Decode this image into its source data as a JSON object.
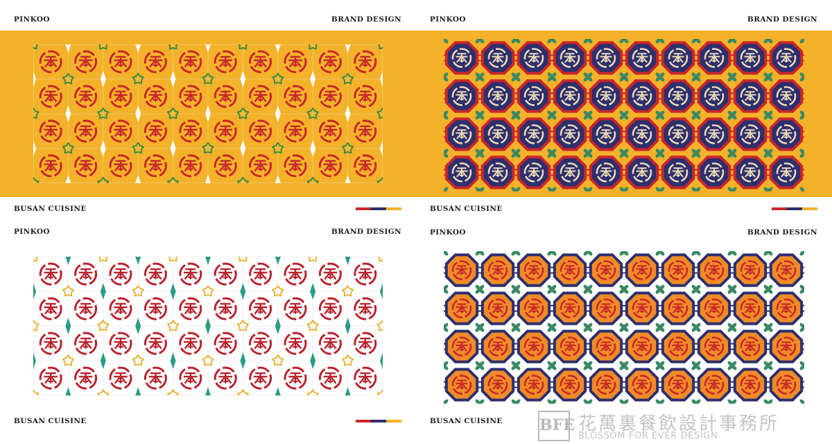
{
  "panels": [
    {
      "id": "top-left",
      "brand": "PINKOO",
      "tagline": "BRAND DESIGN",
      "footer": "BUSAN  CUISINE",
      "pattern_style": "roundel",
      "colors": {
        "background": "#f4b22a",
        "pattern_bg": "#f4b22a",
        "emblem": "#c8262b",
        "flower": "#3e8b3a",
        "diamond": "#ffffff",
        "grid": "#e7d4a0"
      }
    },
    {
      "id": "top-right",
      "brand": "PINKOO",
      "tagline": "BRAND DESIGN",
      "footer": "BUSAN  CUISINE",
      "pattern_style": "octagon",
      "colors": {
        "background": "#f4b22a",
        "pattern_bg": "#f4b22a",
        "octagon_outer": "#c8262b",
        "octagon_fill": "#2d2f6e",
        "emblem": "#ead9b5",
        "connector": "#c8262b",
        "clover": "#3b8a63"
      }
    },
    {
      "id": "bottom-left",
      "brand": "PINKOO",
      "tagline": "BRAND DESIGN",
      "footer": "BUSAN  CUISINE",
      "pattern_style": "roundel",
      "colors": {
        "background": "#ffffff",
        "pattern_bg": "#ffffff",
        "emblem": "#b8232c",
        "flower": "#e8b53a",
        "diamond": "#2c9c86",
        "grid": "#e4e4e4"
      }
    },
    {
      "id": "bottom-right",
      "brand": "PINKOO",
      "tagline": "BRAND DESIGN",
      "footer": "BUSAN  CUISINE",
      "pattern_style": "octagon",
      "colors": {
        "background": "#ffffff",
        "pattern_bg": "#ffffff",
        "octagon_outer": "#2d2f6e",
        "octagon_fill": "#ef8c27",
        "emblem": "#c8262b",
        "connector": "#2d2f6e",
        "clover": "#3b8a63"
      }
    }
  ],
  "accent_bar": [
    "#c8262b",
    "#2d2f6e",
    "#f4b22a"
  ],
  "watermark": {
    "logo_text": "BFE",
    "chinese": "花萬裏餐飲設計事務所",
    "english": "BLOSSOM FOR EVER DESIGN"
  }
}
